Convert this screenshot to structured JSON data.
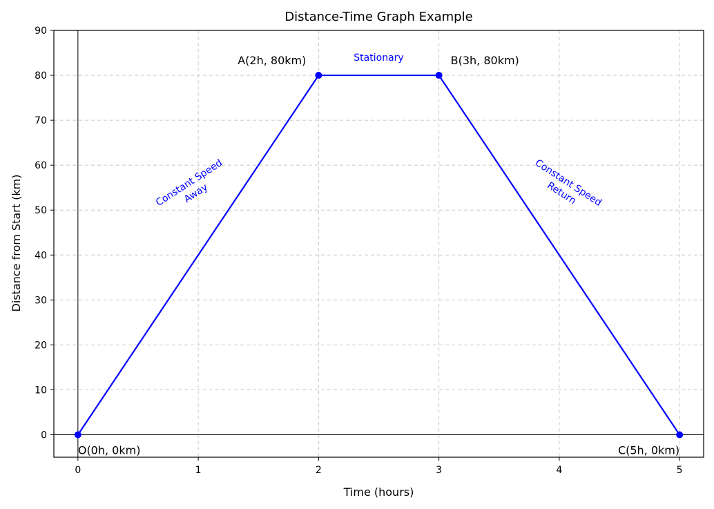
{
  "chart_data": {
    "type": "line",
    "title": "Distance-Time Graph Example",
    "xlabel": "Time (hours)",
    "ylabel": "Distance from Start (km)",
    "xlim": [
      -0.2,
      5.2
    ],
    "ylim": [
      -5,
      90
    ],
    "xticks": [
      0,
      1,
      2,
      3,
      4,
      5
    ],
    "yticks": [
      0,
      10,
      20,
      30,
      40,
      50,
      60,
      70,
      80,
      90
    ],
    "grid": true,
    "reference_lines": {
      "x": 0,
      "y": 0
    },
    "series": [
      {
        "color": "#0000ff",
        "x": [
          0,
          2,
          3,
          5
        ],
        "y": [
          0,
          80,
          80,
          0
        ]
      }
    ],
    "point_labels": [
      {
        "text": "O(0h, 0km)",
        "x": 0,
        "y": 0
      },
      {
        "text": "A(2h, 80km)",
        "x": 2,
        "y": 80
      },
      {
        "text": "B(3h, 80km)",
        "x": 3,
        "y": 80
      },
      {
        "text": "C(5h, 0km)",
        "x": 5,
        "y": 0
      }
    ],
    "segment_annotations": [
      {
        "lines": [
          "Constant Speed",
          "Away"
        ],
        "x": 0.95,
        "y": 55,
        "color": "#0000ff"
      },
      {
        "lines": [
          "Stationary"
        ],
        "x": 2.5,
        "y": 84,
        "color": "#0000ff"
      },
      {
        "lines": [
          "Constant Speed",
          "Return"
        ],
        "x": 4.05,
        "y": 55,
        "color": "#0000ff"
      }
    ]
  }
}
